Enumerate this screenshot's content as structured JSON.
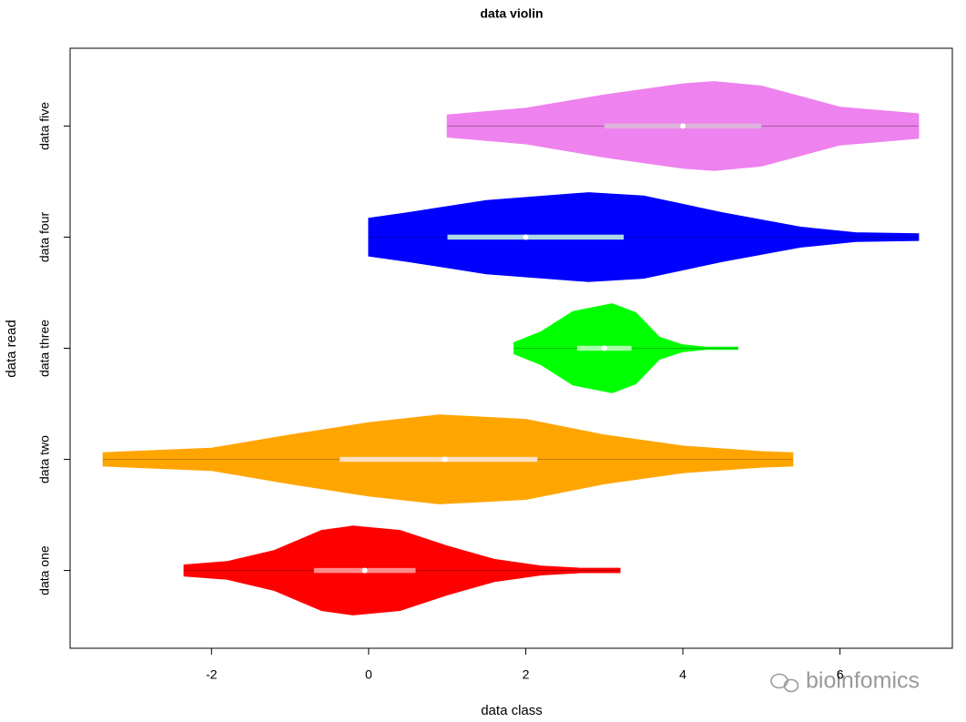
{
  "chart_data": {
    "type": "violin",
    "title": "data violin",
    "x_label": "data class",
    "y_label": "data read",
    "watermark": "bioinfomics",
    "categories": [
      "data one",
      "data two",
      "data three",
      "data four",
      "data five"
    ],
    "xlim": [
      -3.8,
      7.43
    ],
    "xticks": [
      -2,
      0,
      2,
      4,
      6
    ],
    "ylim": [
      0.3,
      5.7
    ],
    "violins": [
      {
        "color": "#ff0000",
        "box_color": "#ff8a8a",
        "x": [
          -2.35,
          -1.8,
          -1.2,
          -0.6,
          -0.2,
          0.4,
          1.0,
          1.6,
          2.2,
          2.7,
          3.2
        ],
        "density": [
          0.05,
          0.08,
          0.18,
          0.36,
          0.4,
          0.36,
          0.22,
          0.1,
          0.04,
          0.02,
          0.02
        ],
        "q1": -0.7,
        "median": -0.05,
        "q3": 0.6
      },
      {
        "color": "#ffa500",
        "box_color": "#ffe0bf",
        "x": [
          -3.38,
          -2,
          -1,
          0,
          0.9,
          2,
          3,
          4,
          5,
          5.4
        ],
        "density": [
          0.06,
          0.1,
          0.22,
          0.33,
          0.4,
          0.36,
          0.22,
          0.12,
          0.07,
          0.06
        ],
        "q1": -0.37,
        "median": 0.97,
        "q3": 2.15
      },
      {
        "color": "#00ff00",
        "box_color": "#a8ffa8",
        "x": [
          1.85,
          2.2,
          2.6,
          3.1,
          3.4,
          3.7,
          4.0,
          4.3,
          4.7
        ],
        "density": [
          0.05,
          0.15,
          0.33,
          0.4,
          0.32,
          0.1,
          0.03,
          0.01,
          0.01
        ],
        "q1": 2.65,
        "median": 3.0,
        "q3": 3.35
      },
      {
        "color": "#0000ff",
        "box_color": "#add8e6",
        "x": [
          0,
          0.5,
          1.5,
          2.8,
          3.5,
          4.5,
          5.5,
          6.2,
          7
        ],
        "density": [
          0.17,
          0.22,
          0.33,
          0.4,
          0.37,
          0.22,
          0.09,
          0.04,
          0.03
        ],
        "q1": 1.0,
        "median": 2.0,
        "q3": 3.25
      },
      {
        "color": "#ee82ee",
        "box_color": "#dcb4dc",
        "x": [
          1.0,
          2,
          3,
          4,
          4.4,
          5.0,
          6,
          7
        ],
        "density": [
          0.1,
          0.16,
          0.28,
          0.38,
          0.4,
          0.36,
          0.17,
          0.11
        ],
        "q1": 3.0,
        "median": 4.0,
        "q3": 5.0
      }
    ]
  }
}
